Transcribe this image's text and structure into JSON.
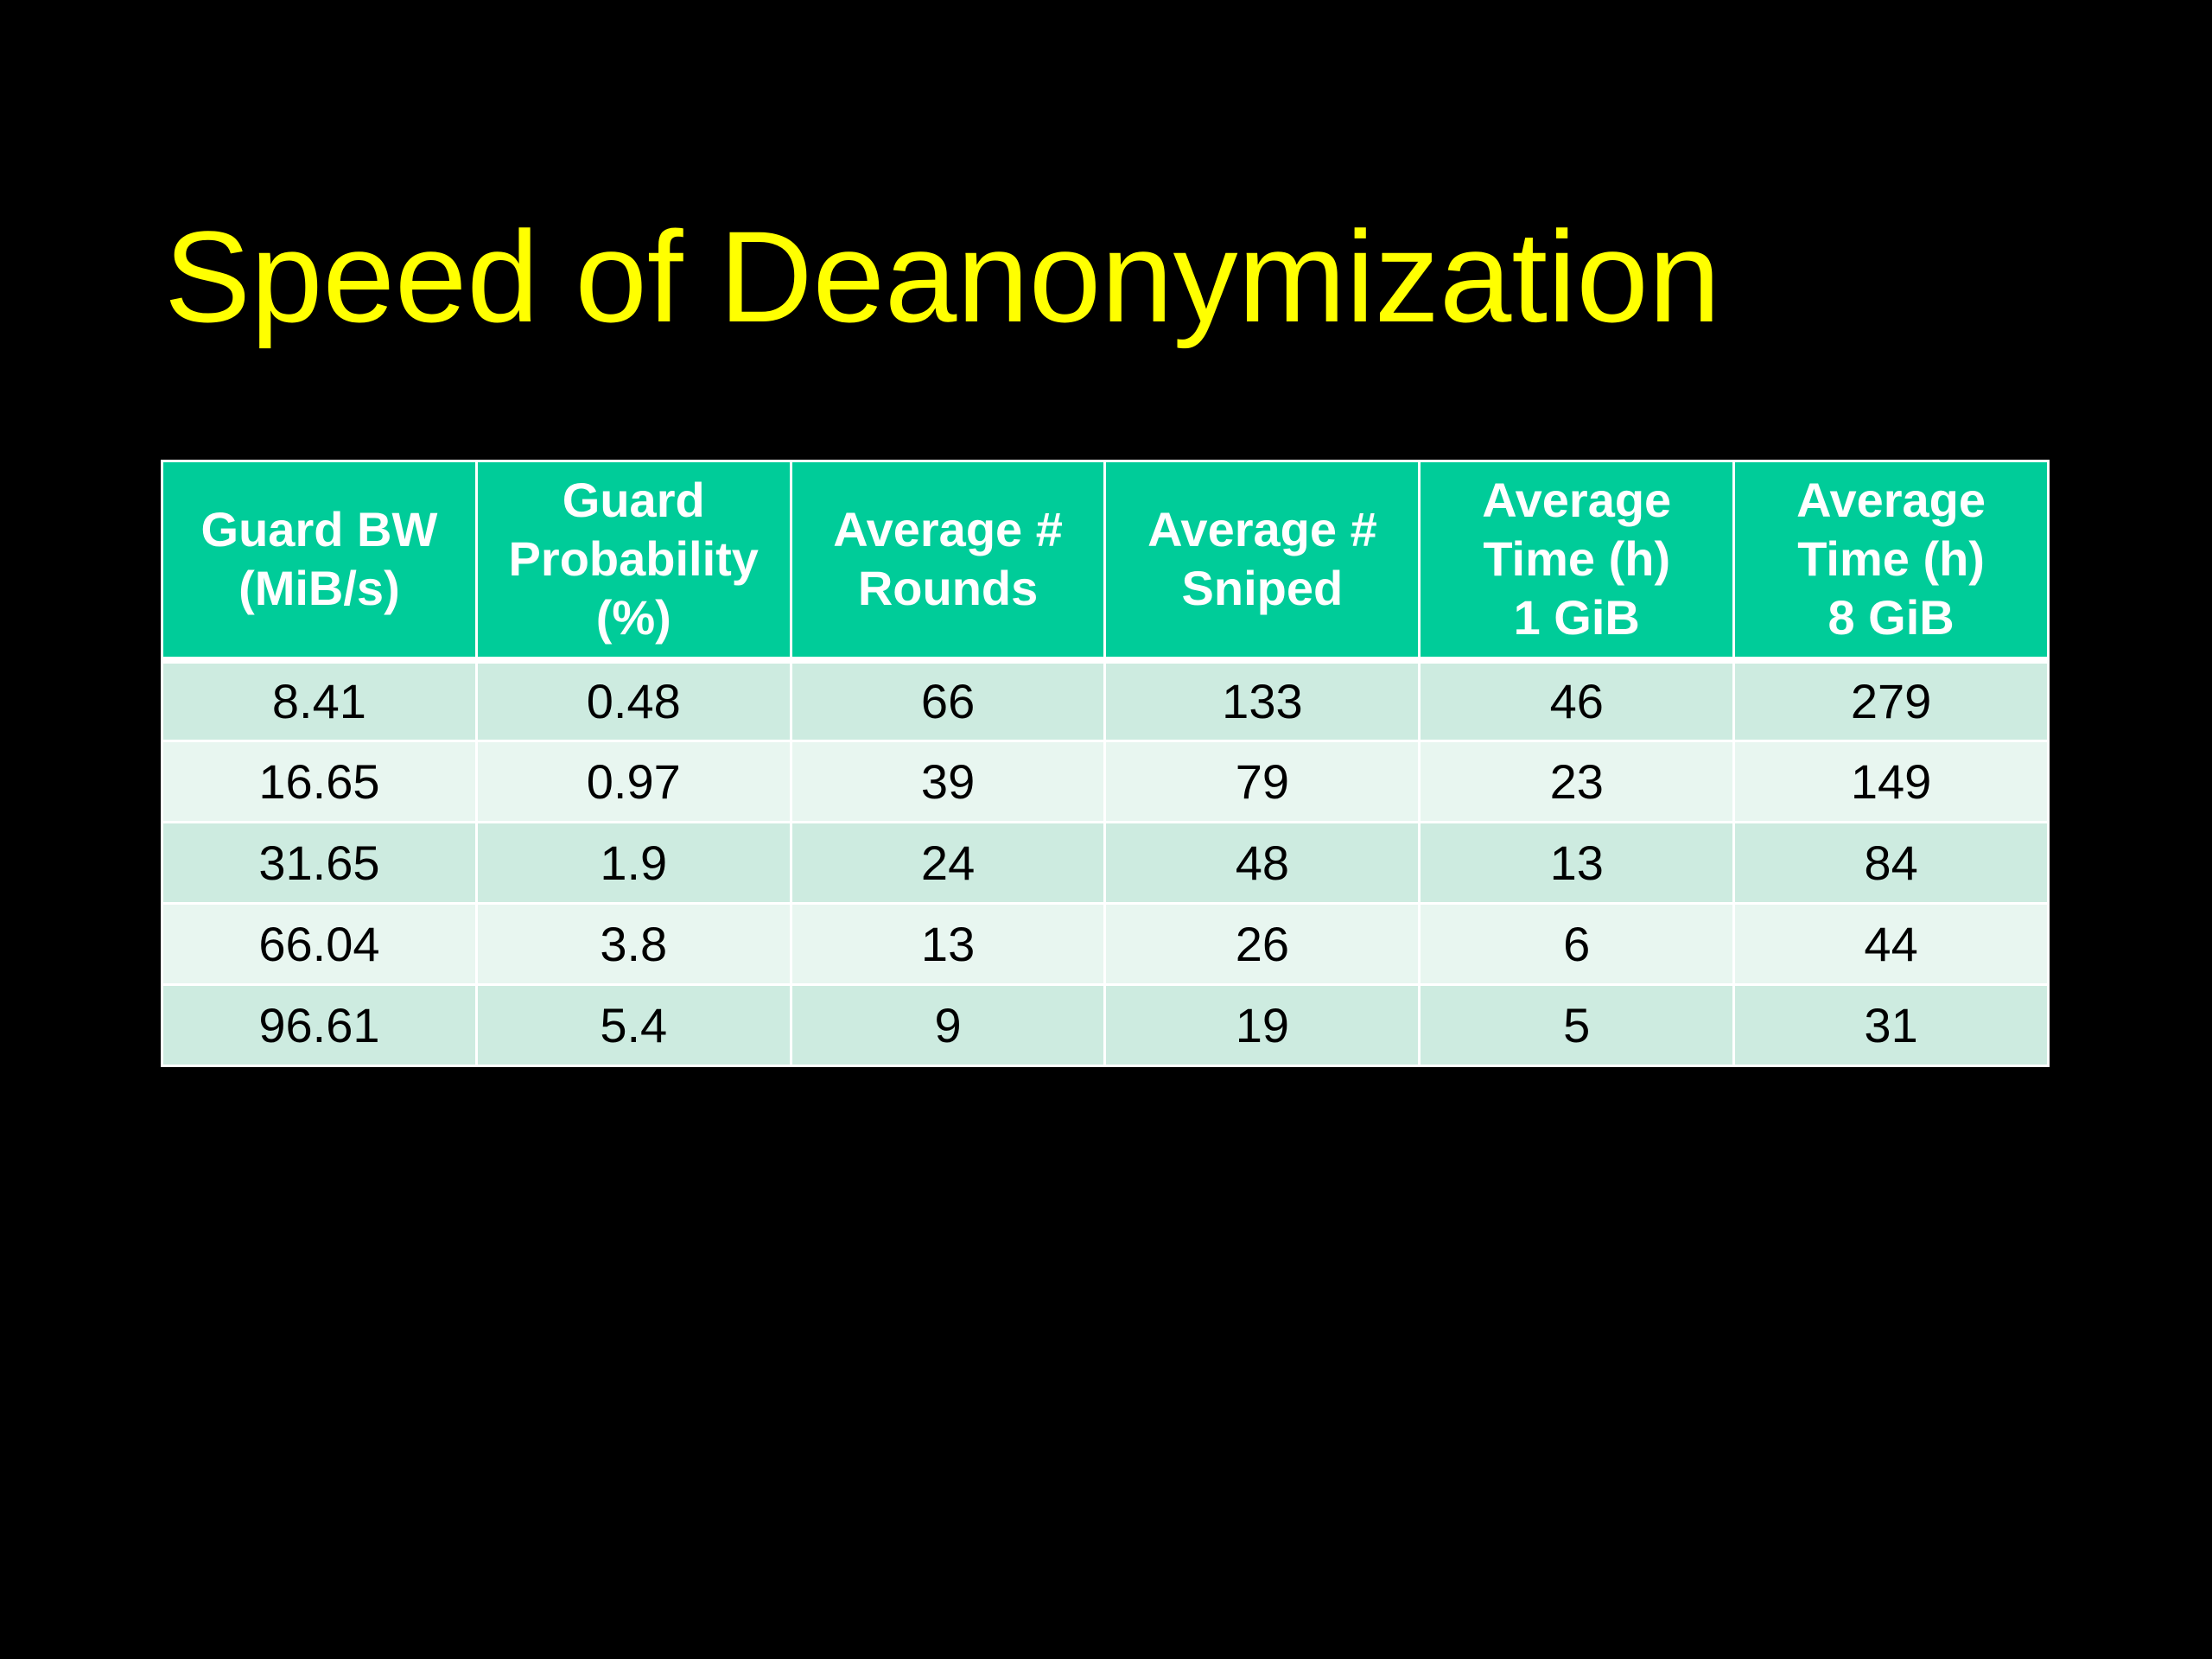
{
  "slide": {
    "title": "Speed of Deanonymization",
    "colors": {
      "background": "#000000",
      "title": "#ffff00",
      "header_fill": "#00cc99",
      "row_odd": "#cdebe0",
      "row_even": "#e8f6f0"
    }
  },
  "table": {
    "headers": [
      [
        "Guard BW",
        "(MiB/s)"
      ],
      [
        "Guard",
        "Probability",
        "(%)"
      ],
      [
        "Average #",
        "Rounds"
      ],
      [
        "Average #",
        "Sniped"
      ],
      [
        "Average",
        "Time (h)",
        "1 GiB"
      ],
      [
        "Average",
        "Time (h)",
        "8 GiB"
      ]
    ],
    "rows": [
      [
        "8.41",
        "0.48",
        "66",
        "133",
        "46",
        "279"
      ],
      [
        "16.65",
        "0.97",
        "39",
        "79",
        "23",
        "149"
      ],
      [
        "31.65",
        "1.9",
        "24",
        "48",
        "13",
        "84"
      ],
      [
        "66.04",
        "3.8",
        "13",
        "26",
        "6",
        "44"
      ],
      [
        "96.61",
        "5.4",
        "9",
        "19",
        "5",
        "31"
      ]
    ]
  }
}
